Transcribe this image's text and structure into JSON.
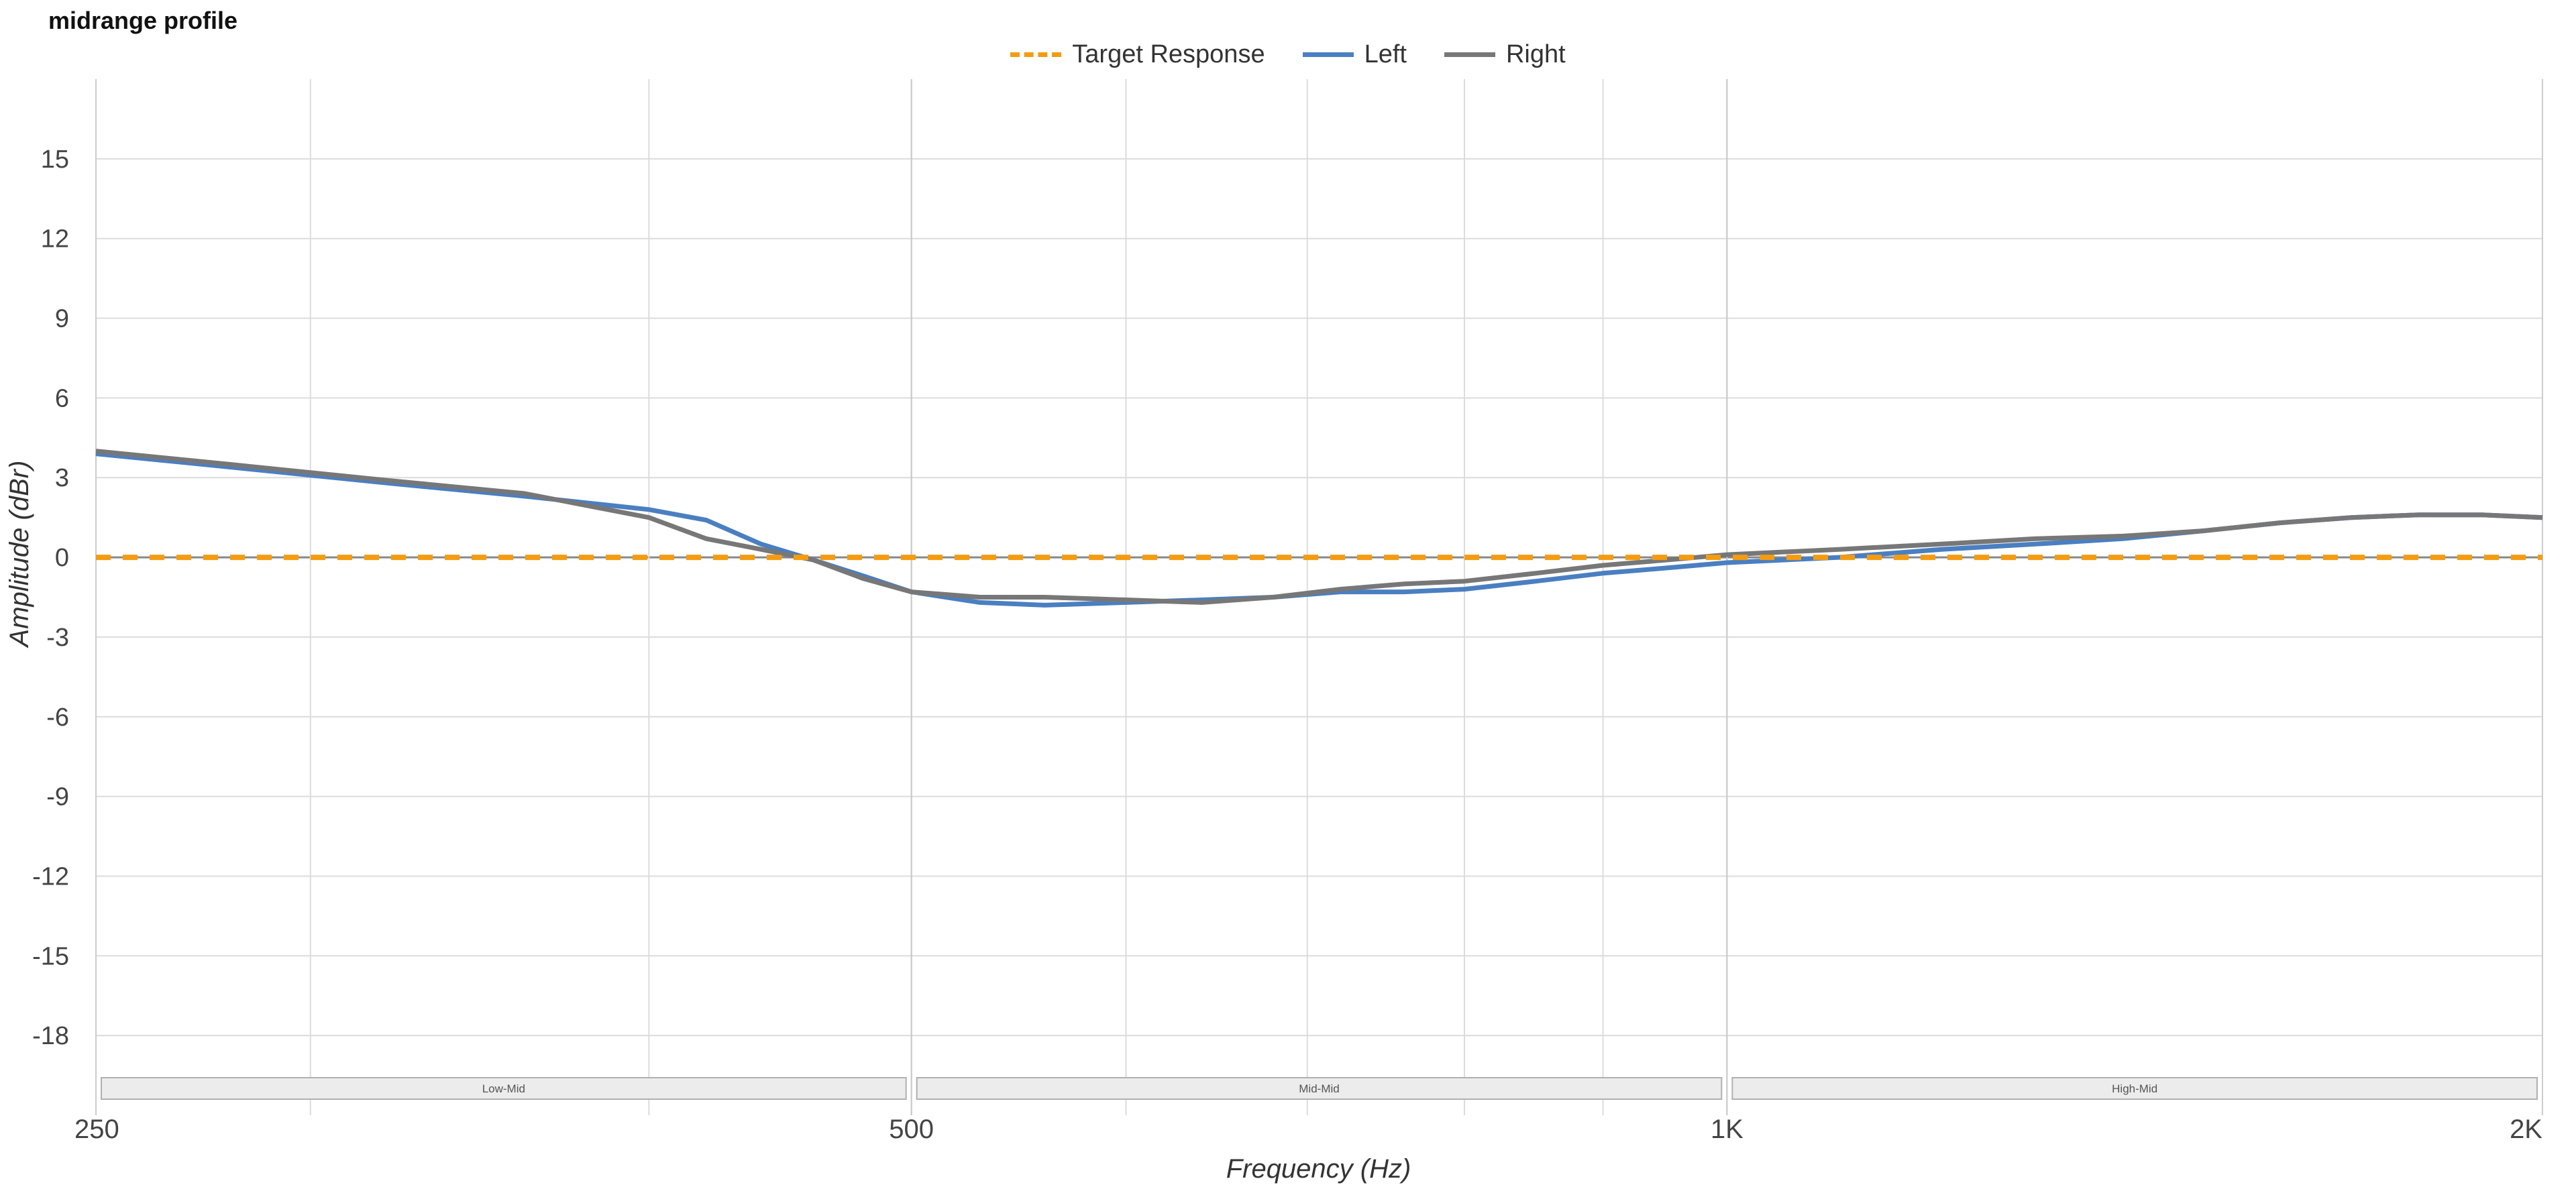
{
  "chart_data": {
    "type": "line",
    "title": "midrange profile",
    "xlabel": "Frequency (Hz)",
    "ylabel": "Amplitude (dBr)",
    "xscale": "log",
    "xlim": [
      250,
      2000
    ],
    "ylim": [
      -21,
      18
    ],
    "x_tick_values": [
      250,
      500,
      1000,
      2000
    ],
    "x_tick_labels": [
      "250",
      "500",
      "1K",
      "2K"
    ],
    "y_ticks": [
      15,
      12,
      9,
      6,
      3,
      0,
      -3,
      -6,
      -9,
      -12,
      -15,
      -18
    ],
    "grid": true,
    "legend_position": "top-center",
    "bands": [
      {
        "label": "Low-Mid",
        "from": 250,
        "to": 500
      },
      {
        "label": "Mid-Mid",
        "from": 500,
        "to": 1000
      },
      {
        "label": "High-Mid",
        "from": 1000,
        "to": 2000
      }
    ],
    "series": [
      {
        "name": "Target Response",
        "color": "#f39c12",
        "style": "dashed",
        "x": [
          250,
          2000
        ],
        "y": [
          0,
          0
        ]
      },
      {
        "name": "Left",
        "color": "#4a7fc1",
        "style": "solid",
        "x": [
          250,
          280,
          320,
          360,
          400,
          420,
          440,
          460,
          480,
          500,
          530,
          560,
          600,
          640,
          680,
          720,
          760,
          800,
          850,
          900,
          950,
          1000,
          1100,
          1200,
          1300,
          1400,
          1500,
          1600,
          1700,
          1800,
          1900,
          2000
        ],
        "y": [
          3.9,
          3.4,
          2.8,
          2.3,
          1.8,
          1.4,
          0.5,
          -0.1,
          -0.7,
          -1.3,
          -1.7,
          -1.8,
          -1.7,
          -1.6,
          -1.5,
          -1.3,
          -1.3,
          -1.2,
          -0.9,
          -0.6,
          -0.4,
          -0.2,
          0.0,
          0.3,
          0.5,
          0.7,
          1.0,
          1.3,
          1.5,
          1.6,
          1.6,
          1.5
        ]
      },
      {
        "name": "Right",
        "color": "#777777",
        "style": "solid",
        "x": [
          250,
          280,
          320,
          360,
          400,
          420,
          440,
          460,
          480,
          500,
          530,
          560,
          600,
          640,
          680,
          720,
          760,
          800,
          850,
          900,
          950,
          1000,
          1100,
          1200,
          1300,
          1400,
          1500,
          1600,
          1700,
          1800,
          1900,
          2000
        ],
        "y": [
          4.0,
          3.5,
          2.9,
          2.4,
          1.5,
          0.7,
          0.3,
          -0.1,
          -0.8,
          -1.3,
          -1.5,
          -1.5,
          -1.6,
          -1.7,
          -1.5,
          -1.2,
          -1.0,
          -0.9,
          -0.6,
          -0.3,
          -0.1,
          0.1,
          0.3,
          0.5,
          0.7,
          0.8,
          1.0,
          1.3,
          1.5,
          1.6,
          1.6,
          1.5
        ]
      }
    ]
  }
}
